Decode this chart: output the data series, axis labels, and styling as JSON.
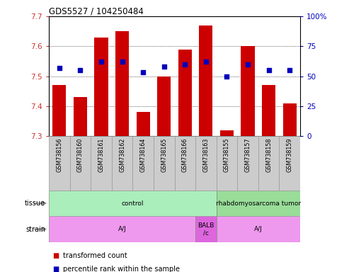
{
  "title": "GDS5527 / 104250484",
  "samples": [
    "GSM738156",
    "GSM738160",
    "GSM738161",
    "GSM738162",
    "GSM738164",
    "GSM738165",
    "GSM738166",
    "GSM738163",
    "GSM738155",
    "GSM738157",
    "GSM738158",
    "GSM738159"
  ],
  "bar_values": [
    7.47,
    7.43,
    7.63,
    7.65,
    7.38,
    7.5,
    7.59,
    7.67,
    7.32,
    7.6,
    7.47,
    7.41
  ],
  "dot_values": [
    57,
    55,
    62,
    62,
    53,
    58,
    60,
    62,
    50,
    60,
    55,
    55
  ],
  "bar_bottom": 7.3,
  "ylim_left": [
    7.3,
    7.7
  ],
  "ylim_right": [
    0,
    100
  ],
  "yticks_left": [
    7.3,
    7.4,
    7.5,
    7.6,
    7.7
  ],
  "yticks_right": [
    0,
    25,
    50,
    75,
    100
  ],
  "bar_color": "#cc0000",
  "dot_color": "#0000bb",
  "tissue_labels": [
    "control",
    "rhabdomyosarcoma tumor"
  ],
  "tissue_colors": [
    "#aaeebb",
    "#99dd99"
  ],
  "tissue_ranges_idx": [
    [
      0,
      8
    ],
    [
      8,
      12
    ]
  ],
  "strain_labels": [
    "A/J",
    "BALB\n/c",
    "A/J"
  ],
  "strain_color_main": "#ee99ee",
  "strain_color_balb": "#dd66dd",
  "strain_ranges_idx": [
    [
      0,
      7
    ],
    [
      7,
      8
    ],
    [
      8,
      12
    ]
  ],
  "legend_red": "transformed count",
  "legend_blue": "percentile rank within the sample",
  "tick_color_left": "#cc3333",
  "tick_color_right": "#0000bb",
  "grid_yticks": [
    7.4,
    7.5,
    7.6
  ],
  "box_color": "#cccccc",
  "tissue_label_left": "tissue",
  "strain_label_left": "strain",
  "arrow_color": "#888888"
}
